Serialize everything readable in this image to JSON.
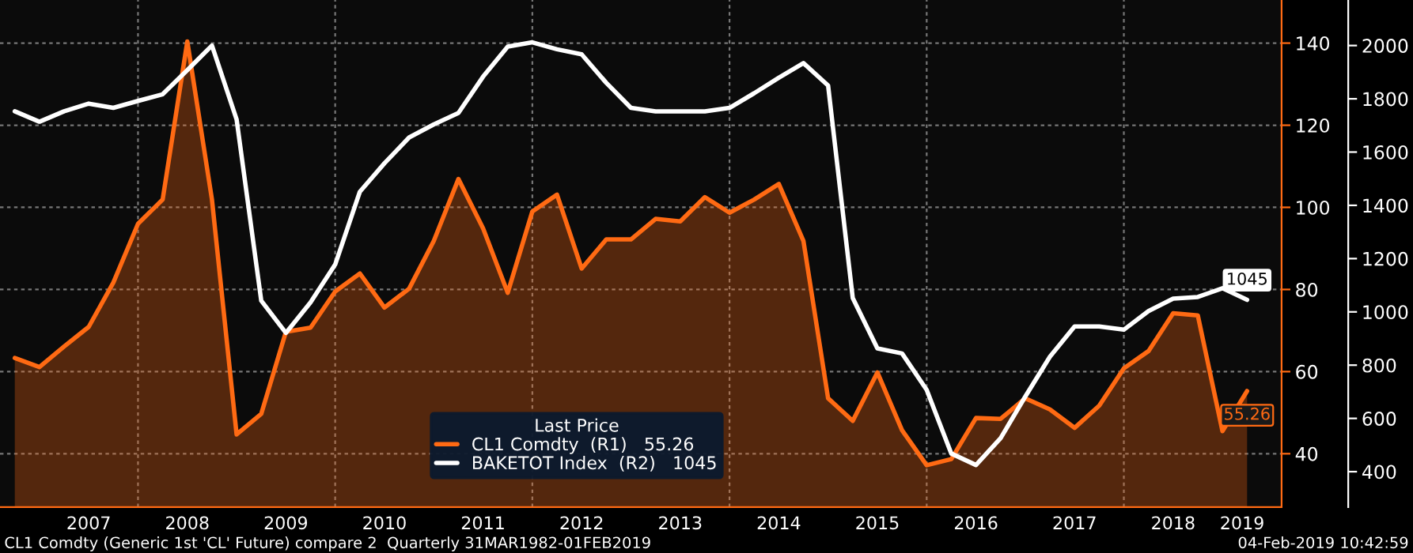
{
  "chart_data": {
    "type": "line",
    "x": [
      2006.75,
      2007.0,
      2007.25,
      2007.5,
      2007.75,
      2008.0,
      2008.25,
      2008.5,
      2008.75,
      2009.0,
      2009.25,
      2009.5,
      2009.75,
      2010.0,
      2010.25,
      2010.5,
      2010.75,
      2011.0,
      2011.25,
      2011.5,
      2011.75,
      2012.0,
      2012.25,
      2012.5,
      2012.75,
      2013.0,
      2013.25,
      2013.5,
      2013.75,
      2014.0,
      2014.25,
      2014.5,
      2014.75,
      2015.0,
      2015.25,
      2015.5,
      2015.75,
      2016.0,
      2016.25,
      2016.5,
      2016.75,
      2017.0,
      2017.25,
      2017.5,
      2017.75,
      2018.0,
      2018.25,
      2018.5,
      2018.75,
      2019.0,
      2019.25
    ],
    "series": [
      {
        "name": "CL1 Comdty  (R1)   55.26",
        "type": "area",
        "color": "#ff6a13",
        "axis": "y",
        "values": [
          63.3,
          61.1,
          66.1,
          70.9,
          81.7,
          96.0,
          101.9,
          140.4,
          101.9,
          44.7,
          49.7,
          69.7,
          70.7,
          79.5,
          83.9,
          75.6,
          80.2,
          91.8,
          106.9,
          94.9,
          79.2,
          99.0,
          103.1,
          85.1,
          92.2,
          92.2,
          97.2,
          96.6,
          102.5,
          98.7,
          101.9,
          105.7,
          91.8,
          53.5,
          48.0,
          59.8,
          45.7,
          37.2,
          38.7,
          48.7,
          48.5,
          53.5,
          50.8,
          46.3,
          51.7,
          60.8,
          65.0,
          74.2,
          73.7,
          45.5,
          55.26
        ],
        "value_labels": [
          null,
          null,
          null,
          null,
          null,
          null,
          null,
          null,
          null,
          null,
          null,
          null,
          null,
          null,
          null,
          null,
          null,
          null,
          null,
          null,
          null,
          null,
          null,
          null,
          null,
          null,
          null,
          null,
          null,
          null,
          null,
          null,
          null,
          null,
          null,
          null,
          null,
          null,
          null,
          null,
          null,
          null,
          null,
          null,
          null,
          null,
          null,
          null,
          null,
          null,
          "55.26"
        ]
      },
      {
        "name": "BAKETOT Index  (R2)   1045",
        "color": "#ffffff",
        "axis": "y2",
        "values": [
          1753,
          1714,
          1753,
          1782,
          1766,
          1792,
          1817,
          1908,
          2000,
          1723,
          1042,
          921,
          1036,
          1178,
          1451,
          1558,
          1655,
          1704,
          1747,
          1883,
          1996,
          2012,
          1986,
          1967,
          1860,
          1766,
          1753,
          1753,
          1753,
          1766,
          1821,
          1879,
          1934,
          1850,
          1052,
          863,
          844,
          707,
          468,
          425,
          526,
          682,
          832,
          945,
          945,
          933,
          1003,
          1050,
          1056,
          1089,
          1045
        ],
        "value_labels": [
          null,
          null,
          null,
          null,
          null,
          null,
          null,
          null,
          null,
          null,
          null,
          null,
          null,
          null,
          null,
          null,
          null,
          null,
          null,
          null,
          null,
          null,
          null,
          null,
          null,
          null,
          null,
          null,
          null,
          null,
          null,
          null,
          null,
          null,
          null,
          null,
          null,
          null,
          null,
          null,
          null,
          null,
          null,
          null,
          null,
          null,
          null,
          null,
          null,
          null,
          "1045"
        ]
      }
    ],
    "legend_title": "Last Price",
    "legend": "bottom",
    "xlim": [
      2006.6,
      2019.6
    ],
    "xticks": [
      {
        "value": 2007.5,
        "label": "2007"
      },
      {
        "value": 2008,
        "label": null
      },
      {
        "value": 2008.5,
        "label": "2008"
      },
      {
        "value": 2009.5,
        "label": "2009"
      },
      {
        "value": 2010,
        "label": null
      },
      {
        "value": 2010.5,
        "label": "2010"
      },
      {
        "value": 2011.5,
        "label": "2011"
      },
      {
        "value": 2012,
        "label": null
      },
      {
        "value": 2012.5,
        "label": "2012"
      },
      {
        "value": 2013.5,
        "label": "2013"
      },
      {
        "value": 2014,
        "label": null
      },
      {
        "value": 2014.5,
        "label": "2014"
      },
      {
        "value": 2015.5,
        "label": "2015"
      },
      {
        "value": 2016,
        "label": null
      },
      {
        "value": 2016.5,
        "label": "2016"
      },
      {
        "value": 2017.5,
        "label": "2017"
      },
      {
        "value": 2018,
        "label": null
      },
      {
        "value": 2018.5,
        "label": "2018"
      },
      {
        "value": 2019.2,
        "label": "2019"
      }
    ],
    "ylim": [
      27,
      150.5
    ],
    "yticks": [
      40,
      60,
      80,
      100,
      120,
      140
    ],
    "y2lim": [
      267,
      2171
    ],
    "y2ticks": [
      400,
      600,
      800,
      1000,
      1200,
      1400,
      1600,
      1800,
      2000
    ],
    "grid": true,
    "annotations": [
      "CL1 Comdty (Generic 1st 'CL' Future) compare 2  Quarterly 31MAR1982-01FEB2019",
      "04-Feb-2019 10:42:59"
    ]
  }
}
